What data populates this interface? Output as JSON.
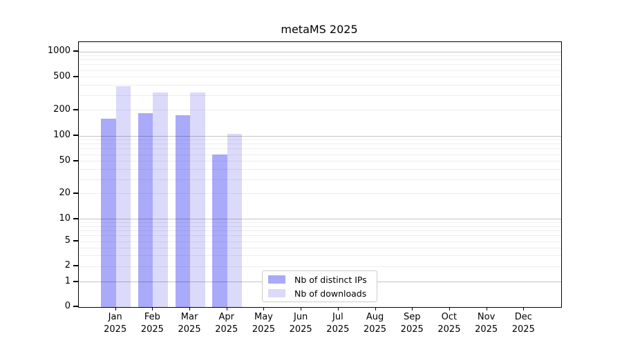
{
  "chart_data": {
    "type": "bar",
    "title": "metaMS 2025",
    "categories": [
      [
        "Jan",
        "2025"
      ],
      [
        "Feb",
        "2025"
      ],
      [
        "Mar",
        "2025"
      ],
      [
        "Apr",
        "2025"
      ],
      [
        "May",
        "2025"
      ],
      [
        "Jun",
        "2025"
      ],
      [
        "Jul",
        "2025"
      ],
      [
        "Aug",
        "2025"
      ],
      [
        "Sep",
        "2025"
      ],
      [
        "Oct",
        "2025"
      ],
      [
        "Nov",
        "2025"
      ],
      [
        "Dec",
        "2025"
      ]
    ],
    "series": [
      {
        "name": "Nb of distinct IPs",
        "color": "#aaaafa",
        "values": [
          160,
          185,
          176,
          60,
          null,
          null,
          null,
          null,
          null,
          null,
          null,
          null
        ]
      },
      {
        "name": "Nb of downloads",
        "color": "#dbdafa",
        "values": [
          390,
          330,
          325,
          105,
          null,
          null,
          null,
          null,
          null,
          null,
          null,
          null
        ]
      }
    ],
    "yticks": [
      0,
      1,
      2,
      5,
      10,
      20,
      50,
      100,
      200,
      500,
      1000
    ],
    "ylim": [
      0,
      1300
    ],
    "yscale": "log-with-zero-baseline",
    "xlabel": "",
    "ylabel": "",
    "grid": "horizontal log minor+major gridlines, drawn over bars",
    "legend_position": "lower center"
  },
  "colors": {
    "background": "#ffffff",
    "axis": "#000000",
    "major_gridline": "#c7c7c7",
    "minor_gridline": "#ededed",
    "distinct_ips_bar": "#aaaafa",
    "downloads_bar": "#dbdafa",
    "legend_border": "#cccccc",
    "text": "#000000"
  }
}
